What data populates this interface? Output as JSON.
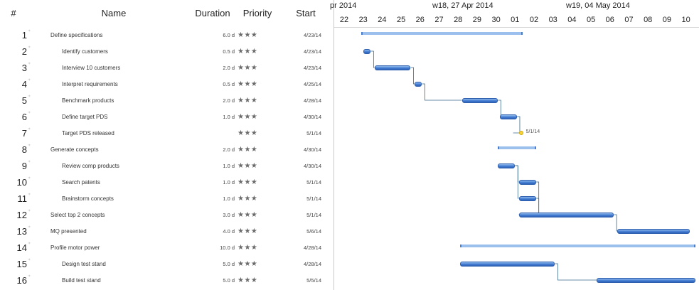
{
  "columns": {
    "number": "#",
    "name": "Name",
    "duration": "Duration",
    "priority": "Priority",
    "start": "Start"
  },
  "timeline": {
    "weeks": [
      {
        "label": "pr 2014"
      },
      {
        "label": "w18, 27 Apr 2014"
      },
      {
        "label": "w19, 04 May 2014"
      }
    ],
    "days": [
      "22",
      "23",
      "24",
      "25",
      "26",
      "27",
      "28",
      "29",
      "30",
      "01",
      "02",
      "03",
      "04",
      "05",
      "06",
      "07",
      "08",
      "09",
      "10"
    ]
  },
  "tasks": [
    {
      "num": "1",
      "name": "Define specifications",
      "indent": 0,
      "duration": "6.0 d",
      "stars": "★★★",
      "start": "4/23/14",
      "type": "summary",
      "s": 0.9,
      "e": 9.4
    },
    {
      "num": "2",
      "name": "Identify customers",
      "indent": 1,
      "duration": "0.5 d",
      "stars": "★★★",
      "start": "4/23/14",
      "type": "task",
      "s": 1.0,
      "e": 1.4
    },
    {
      "num": "3",
      "name": "Interview 10 customers",
      "indent": 1,
      "duration": "2.0 d",
      "stars": "★★★",
      "start": "4/23/14",
      "type": "task",
      "s": 1.6,
      "e": 3.5
    },
    {
      "num": "4",
      "name": "Interpret requirements",
      "indent": 1,
      "duration": "0.5 d",
      "stars": "★★★",
      "start": "4/25/14",
      "type": "task",
      "s": 3.7,
      "e": 4.1
    },
    {
      "num": "5",
      "name": "Benchmark products",
      "indent": 1,
      "duration": "2.0 d",
      "stars": "★★★",
      "start": "4/28/14",
      "type": "task",
      "s": 6.2,
      "e": 8.1
    },
    {
      "num": "6",
      "name": "Define target PDS",
      "indent": 1,
      "duration": "1.0 d",
      "stars": "★★★",
      "start": "4/30/14",
      "type": "task",
      "s": 8.2,
      "e": 9.1
    },
    {
      "num": "7",
      "name": "Target PDS released",
      "indent": 1,
      "duration": "",
      "stars": "★★★",
      "start": "5/1/14",
      "type": "milestone",
      "s": 8.9,
      "e": 8.9,
      "label": "5/1/14"
    },
    {
      "num": "8",
      "name": "Generate concepts",
      "indent": 0,
      "duration": "2.0 d",
      "stars": "★★★",
      "start": "4/30/14",
      "type": "summary",
      "s": 8.1,
      "e": 10.1
    },
    {
      "num": "9",
      "name": "Review comp products",
      "indent": 1,
      "duration": "1.0 d",
      "stars": "★★★",
      "start": "4/30/14",
      "type": "task",
      "s": 8.1,
      "e": 9.0
    },
    {
      "num": "10",
      "name": "Search patents",
      "indent": 1,
      "duration": "1.0 d",
      "stars": "★★★",
      "start": "5/1/14",
      "type": "task",
      "s": 9.2,
      "e": 10.1
    },
    {
      "num": "11",
      "name": "Brainstorm concepts",
      "indent": 1,
      "duration": "1.0 d",
      "stars": "★★★",
      "start": "5/1/14",
      "type": "task",
      "s": 9.2,
      "e": 10.1
    },
    {
      "num": "12",
      "name": "Select top 2 concepts",
      "indent": 0,
      "duration": "3.0 d",
      "stars": "★★★",
      "start": "5/1/14",
      "type": "task",
      "s": 9.2,
      "e": 14.2
    },
    {
      "num": "13",
      "name": "MQ presented",
      "indent": 0,
      "duration": "4.0 d",
      "stars": "★★★",
      "start": "5/6/14",
      "type": "task",
      "s": 14.4,
      "e": 18.2
    },
    {
      "num": "14",
      "name": "Profile motor power",
      "indent": 0,
      "duration": "10.0 d",
      "stars": "★★★",
      "start": "4/28/14",
      "type": "summary",
      "s": 6.1,
      "e": 18.5
    },
    {
      "num": "15",
      "name": "Design test stand",
      "indent": 1,
      "duration": "5.0 d",
      "stars": "★★★",
      "start": "4/28/14",
      "type": "task",
      "s": 6.1,
      "e": 11.1
    },
    {
      "num": "16",
      "name": "Build test stand",
      "indent": 1,
      "duration": "5.0 d",
      "stars": "★★★",
      "start": "5/5/14",
      "type": "task",
      "s": 13.3,
      "e": 18.5
    }
  ]
}
